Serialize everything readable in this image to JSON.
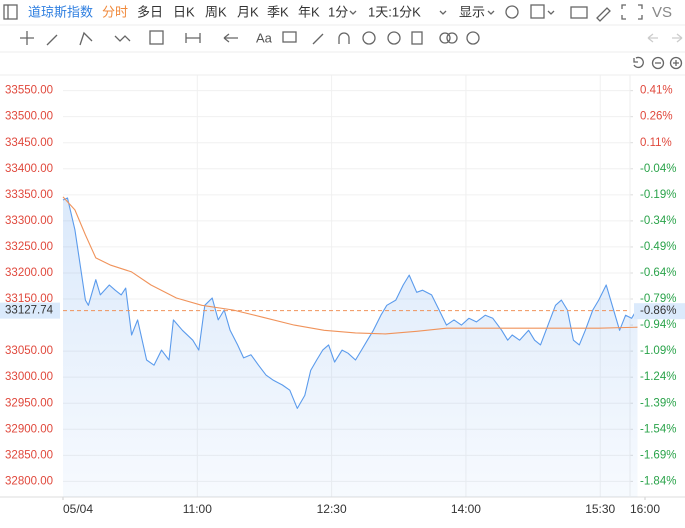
{
  "toolbar": {
    "symbol": "道琼斯指数",
    "tabs": [
      "分时",
      "多日",
      "日K",
      "周K",
      "月K",
      "季K",
      "年K"
    ],
    "interval": "1分",
    "range": "1天:1分K",
    "display": "显示",
    "compare": "VS",
    "text_tool": "Aa"
  },
  "chart_data": {
    "type": "line",
    "xlim": [
      0,
      390
    ],
    "xticks": [
      {
        "value": 0,
        "label": "05/04"
      },
      {
        "value": 90,
        "label": "11:00"
      },
      {
        "value": 180,
        "label": "12:30"
      },
      {
        "value": 270,
        "label": "14:00"
      },
      {
        "value": 360,
        "label": "15:30"
      },
      {
        "value": 390,
        "label": "16:00"
      }
    ],
    "ylim": [
      32770,
      33580
    ],
    "yticks": [
      {
        "value": 33550,
        "label": "33550.00"
      },
      {
        "value": 33500,
        "label": "33500.00"
      },
      {
        "value": 33450,
        "label": "33450.00"
      },
      {
        "value": 33400,
        "label": "33400.00"
      },
      {
        "value": 33350,
        "label": "33350.00"
      },
      {
        "value": 33300,
        "label": "33300.00"
      },
      {
        "value": 33250,
        "label": "33250.00"
      },
      {
        "value": 33200,
        "label": "33200.00"
      },
      {
        "value": 33150,
        "label": "33150.00"
      },
      {
        "value": 33050,
        "label": "33050.00"
      },
      {
        "value": 33000,
        "label": "33000.00"
      },
      {
        "value": 32950,
        "label": "32950.00"
      },
      {
        "value": 32900,
        "label": "32900.00"
      },
      {
        "value": 32850,
        "label": "32850.00"
      },
      {
        "value": 32800,
        "label": "32800.00"
      }
    ],
    "y2lim": [
      -1.93,
      0.5
    ],
    "y2ticks": [
      {
        "value": 0.41,
        "label": "0.41%"
      },
      {
        "value": 0.26,
        "label": "0.26%"
      },
      {
        "value": 0.11,
        "label": "0.11%"
      },
      {
        "value": -0.04,
        "label": "-0.04%"
      },
      {
        "value": -0.19,
        "label": "-0.19%"
      },
      {
        "value": -0.34,
        "label": "-0.34%"
      },
      {
        "value": -0.49,
        "label": "-0.49%"
      },
      {
        "value": -0.64,
        "label": "-0.64%"
      },
      {
        "value": -0.79,
        "label": "-0.79%"
      },
      {
        "value": -0.94,
        "label": "-0.94%"
      },
      {
        "value": -1.09,
        "label": "-1.09%"
      },
      {
        "value": -1.24,
        "label": "-1.24%"
      },
      {
        "value": -1.39,
        "label": "-1.39%"
      },
      {
        "value": -1.54,
        "label": "-1.54%"
      },
      {
        "value": -1.69,
        "label": "-1.69%"
      },
      {
        "value": -1.84,
        "label": "-1.84%"
      }
    ],
    "last_price": 33127.74,
    "last_change": {
      "value": -0.86,
      "label": "-0.86%"
    },
    "grid": true,
    "series": [
      {
        "color": "#5b9bec",
        "area": true,
        "x": [
          0,
          3,
          8,
          12,
          15,
          17,
          22,
          25,
          31,
          35,
          39,
          42,
          46,
          50,
          56,
          61,
          66,
          71,
          74,
          80,
          87,
          91,
          95,
          100,
          104,
          108,
          112,
          117,
          121,
          126,
          131,
          136,
          141,
          147,
          152,
          157,
          162,
          166,
          170,
          174,
          178,
          182,
          187,
          191,
          196,
          200,
          204,
          208,
          213,
          217,
          223,
          228,
          232,
          237,
          241,
          247,
          252,
          257,
          262,
          267,
          272,
          277,
          283,
          288,
          294,
          298,
          301,
          306,
          312,
          316,
          320,
          325,
          330,
          334,
          338,
          342,
          346,
          350,
          355,
          359,
          364,
          368,
          373,
          377,
          381,
          385
        ],
        "values": [
          33340,
          33344,
          33283,
          33206,
          33148,
          33138,
          33187,
          33158,
          33177,
          33167,
          33158,
          33171,
          33081,
          33110,
          33033,
          33023,
          33052,
          33033,
          33110,
          33090,
          33071,
          33052,
          33138,
          33152,
          33110,
          33129,
          33090,
          33062,
          33037,
          33043,
          33023,
          33004,
          32994,
          32985,
          32975,
          32940,
          32965,
          33013,
          33033,
          33052,
          33062,
          33029,
          33052,
          33046,
          33033,
          33052,
          33071,
          33090,
          33119,
          33138,
          33148,
          33177,
          33196,
          33163,
          33167,
          33158,
          33129,
          33100,
          33110,
          33100,
          33113,
          33106,
          33119,
          33113,
          33090,
          33071,
          33081,
          33071,
          33090,
          33071,
          33062,
          33100,
          33138,
          33148,
          33129,
          33071,
          33062,
          33090,
          33129,
          33148,
          33177,
          33138,
          33090,
          33119,
          33113,
          33132
        ]
      },
      {
        "color": "#f0935b",
        "area": false,
        "x": [
          0,
          8,
          15,
          22,
          32,
          46,
          59,
          76,
          93,
          114,
          134,
          155,
          175,
          196,
          216,
          237,
          257,
          277,
          298,
          318,
          339,
          359,
          385
        ],
        "values": [
          33346,
          33321,
          33273,
          33229,
          33215,
          33202,
          33177,
          33152,
          33138,
          33129,
          33115,
          33100,
          33090,
          33085,
          33083,
          33088,
          33094,
          33094,
          33094,
          33094,
          33094,
          33094,
          33096
        ]
      }
    ]
  }
}
